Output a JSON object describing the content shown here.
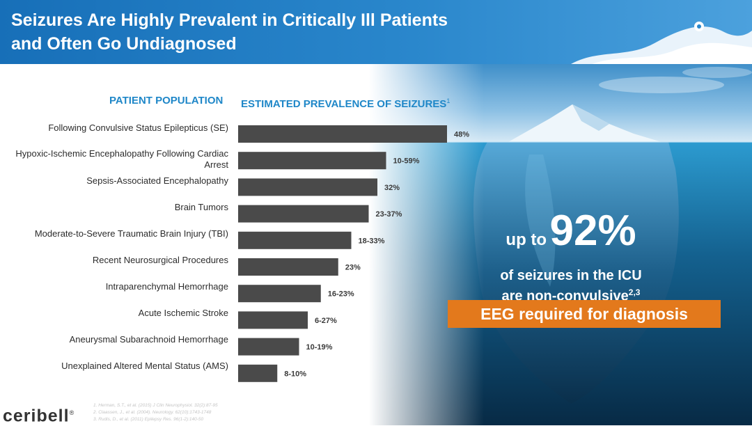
{
  "header": {
    "title_line1": "Seizures Are Highly Prevalent in Critically Ill Patients",
    "title_line2": "and Often Go Undiagnosed"
  },
  "colors": {
    "header_blue": "#1f76bd",
    "heading_blue": "#1f87c8",
    "bar": "#4a4a4a",
    "accent_orange": "#e3791c",
    "ocean_deep": "#0c3552"
  },
  "columns": {
    "left_heading": "PATIENT POPULATION",
    "right_heading": "ESTIMATED PREVALENCE OF SEIZURES",
    "right_heading_ref": "1"
  },
  "chart_data": {
    "type": "bar",
    "orientation": "horizontal",
    "categories": [
      "Following Convulsive Status Epilepticus (SE)",
      "Hypoxic-Ischemic Encephalopathy Following Cardiac Arrest",
      "Sepsis-Associated Encephalopathy",
      "Brain Tumors",
      "Moderate-to-Severe Traumatic Brain Injury (TBI)",
      "Recent Neurosurgical Procedures",
      "Intraparenchymal Hemorrhage",
      "Acute Ischemic Stroke",
      "Aneurysmal Subarachnoid Hemorrhage",
      "Unexplained Altered Mental Status (AMS)"
    ],
    "values": [
      48,
      34,
      32,
      30,
      26,
      23,
      19,
      16,
      14,
      9
    ],
    "value_labels": [
      "48%",
      "10-59%",
      "32%",
      "23-37%",
      "18-33%",
      "23%",
      "16-23%",
      "6-27%",
      "10-19%",
      "8-10%"
    ],
    "xlim": [
      0,
      48
    ],
    "grid": false,
    "legend": "none",
    "title": "",
    "xlabel": "",
    "ylabel": ""
  },
  "callout": {
    "up_to": "up to",
    "percent": "92%",
    "line1": "of seizures in the ICU",
    "line2": "are non-convulsive",
    "line2_ref": "2,3"
  },
  "banner": "EEG required for diagnosis",
  "logo": {
    "name": "ceribell",
    "mark": "®"
  },
  "references": [
    "1.   Herman, S.T., et al. (2015) J Clin Neurophysiol. 32(2):87-95",
    "2.   Claassen, J., et al. (2004). Neurology. 62(10):1743-1748",
    "3.   Rudis, D., et al. (2011) Epilepsy Res. 96(1-2):140-50"
  ]
}
